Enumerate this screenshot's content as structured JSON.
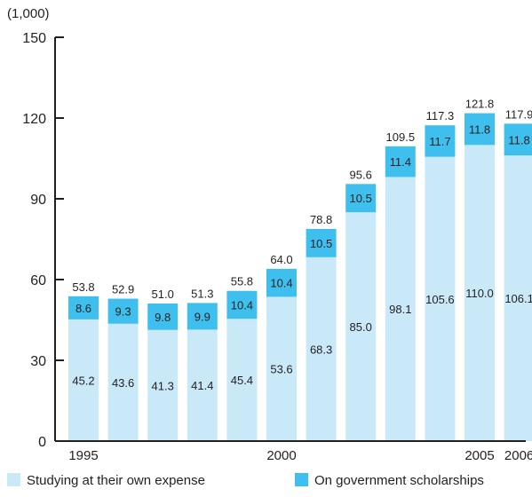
{
  "chart_data": {
    "type": "bar",
    "stacked": true,
    "unit_label": "(1,000)",
    "categories": [
      "1995",
      "1996",
      "1997",
      "1998",
      "1999",
      "2000",
      "2001",
      "2002",
      "2003",
      "2004",
      "2005",
      "2006"
    ],
    "x_tick_labels": [
      "1995",
      "",
      "",
      "",
      "",
      "2000",
      "",
      "",
      "",
      "",
      "2005",
      "2006"
    ],
    "series": [
      {
        "name": "Studying at their own expense",
        "color": "#c9e9f8",
        "values": [
          45.2,
          43.6,
          41.3,
          41.4,
          45.4,
          53.6,
          68.3,
          85.0,
          98.1,
          105.6,
          110.0,
          106.1
        ],
        "labels": [
          "45.2",
          "43.6",
          "41.3",
          "41.4",
          "45.4",
          "53.6",
          "68.3",
          "85.0",
          "98.1",
          "105.6",
          "110.0",
          "106.1"
        ]
      },
      {
        "name": "On government scholarships",
        "color": "#3fbfee",
        "values": [
          8.6,
          9.3,
          9.8,
          9.9,
          10.4,
          10.4,
          10.5,
          10.5,
          11.4,
          11.7,
          11.8,
          11.8
        ],
        "labels": [
          "8.6",
          "9.3",
          "9.8",
          "9.9",
          "10.4",
          "10.4",
          "10.5",
          "10.5",
          "11.4",
          "11.7",
          "11.8",
          "11.8"
        ]
      }
    ],
    "totals": [
      53.8,
      52.9,
      51.0,
      51.3,
      55.8,
      64.0,
      78.8,
      95.6,
      109.5,
      117.3,
      121.8,
      117.9
    ],
    "total_labels": [
      "53.8",
      "52.9",
      "51.0",
      "51.3",
      "55.8",
      "64.0",
      "78.8",
      "95.6",
      "109.5",
      "117.3",
      "121.8",
      "117.9"
    ],
    "ylim": [
      0,
      150
    ],
    "yticks": [
      0,
      30,
      60,
      90,
      120,
      150
    ],
    "ytick_labels": [
      "0",
      "30",
      "60",
      "90",
      "120",
      "150"
    ],
    "grid": false,
    "legend_position": "bottom",
    "title": "",
    "xlabel": "",
    "ylabel": ""
  }
}
